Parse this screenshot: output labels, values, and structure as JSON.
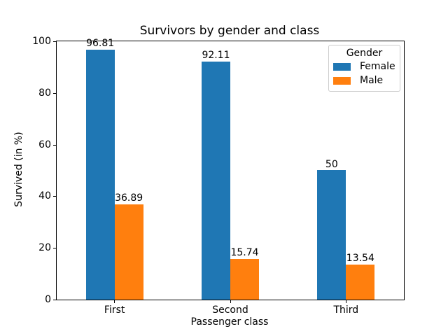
{
  "chart_data": {
    "type": "bar",
    "title": "Survivors by gender and class",
    "xlabel": "Passenger class",
    "ylabel": "Survived (in %)",
    "categories": [
      "First",
      "Second",
      "Third"
    ],
    "series": [
      {
        "name": "Female",
        "color": "#1f77b4",
        "values": [
          96.81,
          92.11,
          50
        ],
        "value_labels": [
          "96.81",
          "92.11",
          "50"
        ]
      },
      {
        "name": "Male",
        "color": "#ff7f0e",
        "values": [
          36.89,
          15.74,
          13.54
        ],
        "value_labels": [
          "36.89",
          "15.74",
          "13.54"
        ]
      }
    ],
    "ylim": [
      0,
      100
    ],
    "yticks": [
      0,
      20,
      40,
      60,
      80,
      100
    ],
    "legend": {
      "title": "Gender",
      "position": "upper right"
    },
    "grid": false,
    "background": "#ffffff",
    "spine_color": "#000000"
  }
}
